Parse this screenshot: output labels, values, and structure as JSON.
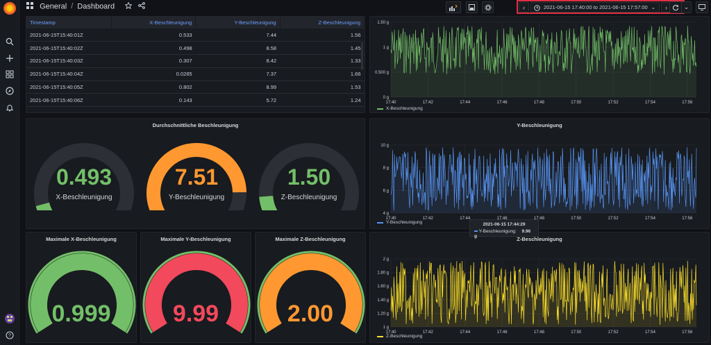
{
  "breadcrumb": {
    "folder": "General",
    "dashboard": "Dashboard"
  },
  "time_range": {
    "label": "2021-06-15 17:40:00 to 2021-06-15 17:57:00"
  },
  "table": {
    "headers": [
      "Timestamp",
      "X-Beschleunigung",
      "Y-Beschleunigung",
      "Z-Beschleunigung"
    ],
    "rows": [
      [
        "2021-06-15T15:40:01Z",
        "0.533",
        "7.44",
        "1.56"
      ],
      [
        "2021-06-15T15:40:02Z",
        "0.498",
        "8.58",
        "1.45"
      ],
      [
        "2021-06-15T15:40:03Z",
        "0.307",
        "8.42",
        "1.33"
      ],
      [
        "2021-06-15T15:40:04Z",
        "0.0285",
        "7.37",
        "1.66"
      ],
      [
        "2021-06-15T15:40:05Z",
        "0.802",
        "8.99",
        "1.53"
      ],
      [
        "2021-06-15T15:40:06Z",
        "0.143",
        "5.72",
        "1.24"
      ]
    ]
  },
  "avg_panel": {
    "title": "Durchschnittliche Beschleunigung",
    "gauges": [
      {
        "value": "0.493",
        "fraction": 0.11,
        "label": "X-Beschleunigung",
        "color": "#73bf69"
      },
      {
        "value": "7.51",
        "fraction": 0.83,
        "label": "Y-Beschleunigung",
        "color": "#ff9830"
      },
      {
        "value": "1.50",
        "fraction": 0.15,
        "label": "Z-Beschleunigung",
        "color": "#73bf69"
      }
    ]
  },
  "max_panels": [
    {
      "title": "Maximale X-Beschleunigung",
      "value": "0.999",
      "fraction": 1.0,
      "color": "#73bf69"
    },
    {
      "title": "Maximale Y-Beschleunigung",
      "value": "9.99",
      "fraction": 1.0,
      "color": "#f2495c"
    },
    {
      "title": "Maximale Z-Beschleunigung",
      "value": "2.00",
      "fraction": 1.0,
      "color": "#ff9830"
    }
  ],
  "graphs": [
    {
      "title": "",
      "legend": "X-Beschleunigung",
      "color": "#73bf69",
      "yticks": [
        "1.50 g",
        "1 g",
        "0.500 g",
        "0 g"
      ]
    },
    {
      "title": "Y-Beschleunigung",
      "legend": "Y-Beschleunigung",
      "color": "#5794f2",
      "yticks": [
        "10 g",
        "8 g",
        "6 g",
        "4 g"
      ]
    },
    {
      "title": "Z-Beschleunigung",
      "legend": "Z-Beschleunigung",
      "color": "#fade2a",
      "yticks": [
        "2 g",
        "1.80 g",
        "1.60 g",
        "1.40 g",
        "1.20 g",
        "1 g"
      ]
    }
  ],
  "xticks": [
    "17:40",
    "17:42",
    "17:44",
    "17:46",
    "17:48",
    "17:50",
    "17:52",
    "17:54",
    "17:56"
  ],
  "tooltip": {
    "time": "2021-06-15 17:44:29",
    "series": "Y-Beschleunigung:",
    "value": "9.96 g"
  }
}
